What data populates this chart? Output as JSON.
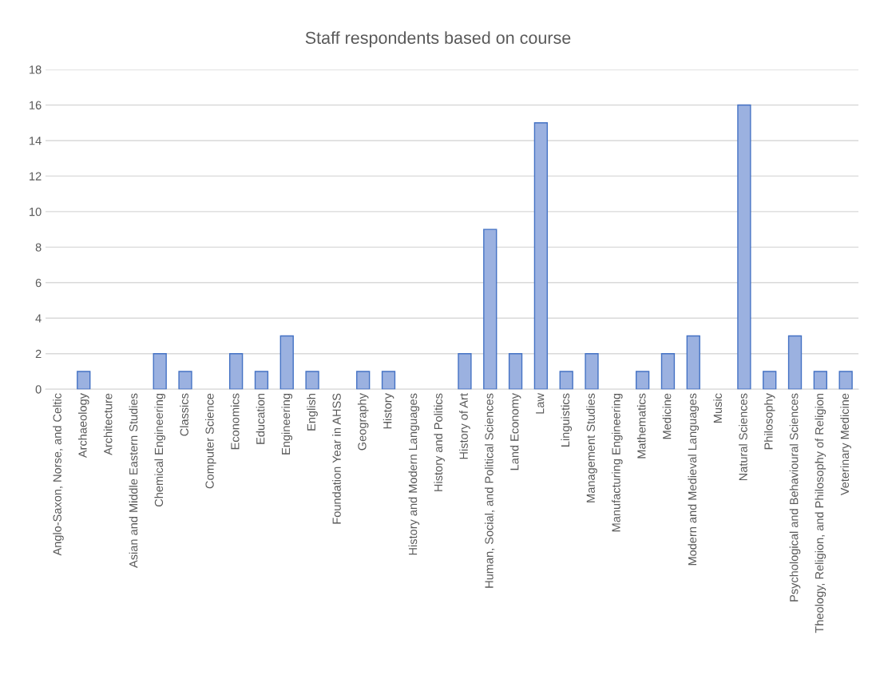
{
  "chart_data": {
    "type": "bar",
    "title": "Staff respondents based on course",
    "categories": [
      "Anglo-Saxon, Norse, and Celtic",
      "Archaeology",
      "Architecture",
      "Asian and Middle Eastern Studies",
      "Chemical Engineering",
      "Classics",
      "Computer Science",
      "Economics",
      "Education",
      "Engineering",
      "English",
      "Foundation Year in AHSS",
      "Geography",
      "History",
      "History and Modern Languages",
      "History and Politics",
      "History of Art",
      "Human, Social, and Political Sciences",
      "Land Economy",
      "Law",
      "Linguistics",
      "Management Studies",
      "Manufacturing Engineering",
      "Mathematics",
      "Medicine",
      "Modern and Medieval Languages",
      "Music",
      "Natural Sciences",
      "Philosophy",
      "Psychological and Behavioural Sciences",
      "Theology, Religion, and Philosophy of Religion",
      "Veterinary Medicine"
    ],
    "values": [
      0,
      1,
      0,
      0,
      2,
      1,
      0,
      2,
      1,
      3,
      1,
      0,
      1,
      1,
      0,
      0,
      2,
      9,
      2,
      15,
      1,
      2,
      0,
      1,
      2,
      3,
      0,
      16,
      1,
      3,
      1,
      1
    ],
    "color": "#9bb1e0",
    "ylim": [
      0,
      18
    ],
    "yticks": [
      0,
      2,
      4,
      6,
      8,
      10,
      12,
      14,
      16,
      18
    ],
    "grid": "y"
  }
}
